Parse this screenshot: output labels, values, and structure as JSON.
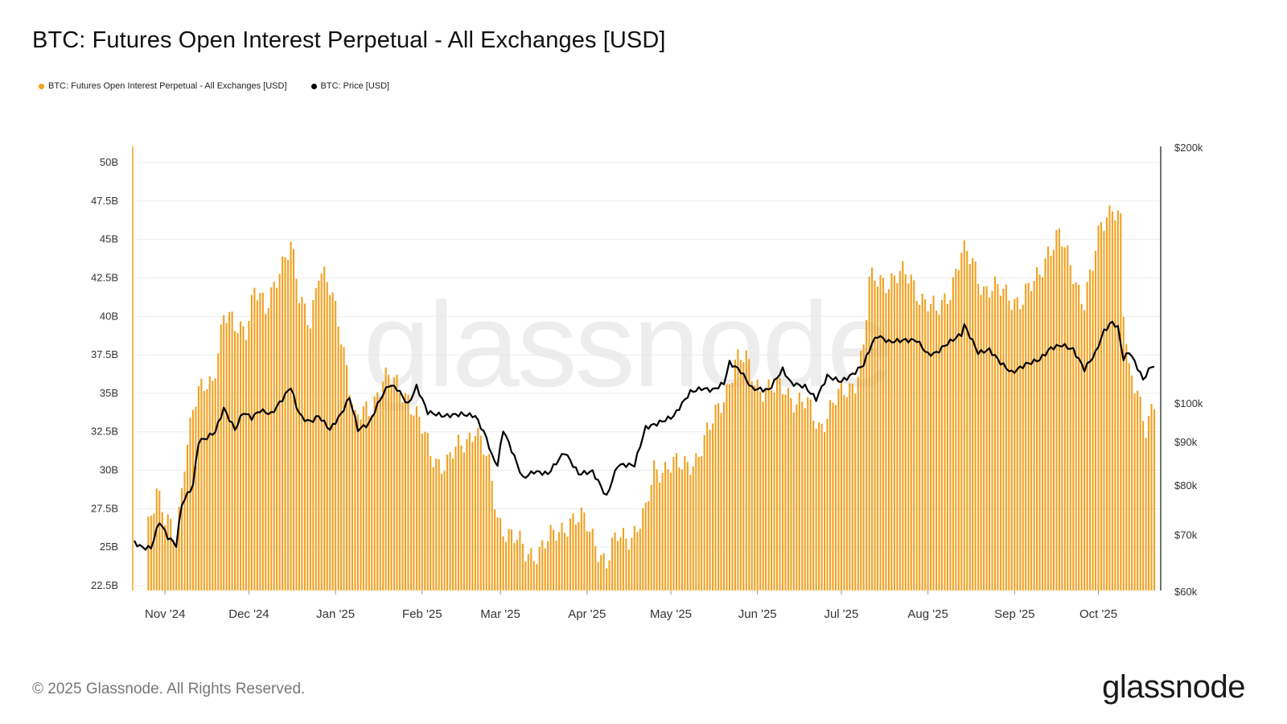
{
  "title": "BTC: Futures Open Interest Perpetual - All Exchanges [USD]",
  "footer": {
    "copyright": "© 2025 Glassnode. All Rights Reserved.",
    "brand": "glassnode"
  },
  "watermark": "glassnode",
  "colors": {
    "oi": "#f2a01e",
    "price": "#000000",
    "grid": "#ececec",
    "watermark": "#e8e8e8"
  },
  "chart_data": {
    "type": "bar",
    "legend_placement": "top-left",
    "grid": true,
    "series": [
      {
        "name": "BTC: Futures Open Interest Perpetual - All Exchanges [USD]",
        "type": "bar",
        "axis": "left",
        "unit": "B",
        "anchors": [
          [
            "2024-10-21",
            26.5
          ],
          [
            "2024-10-25",
            26.0
          ],
          [
            "2024-10-29",
            29.0
          ],
          [
            "2024-11-01",
            26.5
          ],
          [
            "2024-11-05",
            25.5
          ],
          [
            "2024-11-08",
            31.0
          ],
          [
            "2024-11-11",
            34.0
          ],
          [
            "2024-11-14",
            35.0
          ],
          [
            "2024-11-18",
            36.0
          ],
          [
            "2024-11-22",
            40.2
          ],
          [
            "2024-11-26",
            39.0
          ],
          [
            "2024-11-30",
            39.5
          ],
          [
            "2024-12-03",
            42.0
          ],
          [
            "2024-12-07",
            40.0
          ],
          [
            "2024-12-12",
            43.5
          ],
          [
            "2024-12-16",
            44.5
          ],
          [
            "2024-12-19",
            41.0
          ],
          [
            "2024-12-23",
            40.0
          ],
          [
            "2024-12-26",
            43.0
          ],
          [
            "2024-12-30",
            41.5
          ],
          [
            "2025-01-02",
            40.0
          ],
          [
            "2025-01-05",
            37.0
          ],
          [
            "2025-01-08",
            33.0
          ],
          [
            "2025-01-13",
            34.0
          ],
          [
            "2025-01-18",
            36.0
          ],
          [
            "2025-01-22",
            35.5
          ],
          [
            "2025-01-27",
            35.0
          ],
          [
            "2025-01-31",
            33.0
          ],
          [
            "2025-02-04",
            31.0
          ],
          [
            "2025-02-10",
            30.5
          ],
          [
            "2025-02-15",
            31.5
          ],
          [
            "2025-02-20",
            33.0
          ],
          [
            "2025-02-25",
            30.0
          ],
          [
            "2025-02-28",
            27.0
          ],
          [
            "2025-03-04",
            26.0
          ],
          [
            "2025-03-10",
            24.5
          ],
          [
            "2025-03-15",
            25.0
          ],
          [
            "2025-03-20",
            25.5
          ],
          [
            "2025-03-26",
            27.0
          ],
          [
            "2025-03-31",
            26.5
          ],
          [
            "2025-04-04",
            25.5
          ],
          [
            "2025-04-08",
            24.0
          ],
          [
            "2025-04-12",
            25.5
          ],
          [
            "2025-04-17",
            26.0
          ],
          [
            "2025-04-22",
            27.0
          ],
          [
            "2025-04-25",
            30.0
          ],
          [
            "2025-04-30",
            30.5
          ],
          [
            "2025-05-05",
            30.0
          ],
          [
            "2025-05-10",
            31.0
          ],
          [
            "2025-05-15",
            32.5
          ],
          [
            "2025-05-20",
            35.0
          ],
          [
            "2025-05-24",
            37.0
          ],
          [
            "2025-05-28",
            37.0
          ],
          [
            "2025-06-02",
            35.5
          ],
          [
            "2025-06-06",
            35.0
          ],
          [
            "2025-06-11",
            35.5
          ],
          [
            "2025-06-15",
            34.5
          ],
          [
            "2025-06-19",
            34.0
          ],
          [
            "2025-06-23",
            33.0
          ],
          [
            "2025-06-27",
            34.0
          ],
          [
            "2025-07-02",
            35.0
          ],
          [
            "2025-07-06",
            36.0
          ],
          [
            "2025-07-09",
            38.0
          ],
          [
            "2025-07-11",
            42.0
          ],
          [
            "2025-07-15",
            42.5
          ],
          [
            "2025-07-21",
            42.5
          ],
          [
            "2025-07-26",
            42.5
          ],
          [
            "2025-07-31",
            41.0
          ],
          [
            "2025-08-04",
            40.0
          ],
          [
            "2025-08-09",
            42.0
          ],
          [
            "2025-08-13",
            44.0
          ],
          [
            "2025-08-17",
            43.5
          ],
          [
            "2025-08-21",
            42.0
          ],
          [
            "2025-08-26",
            41.5
          ],
          [
            "2025-08-30",
            41.5
          ],
          [
            "2025-09-04",
            41.0
          ],
          [
            "2025-09-08",
            42.0
          ],
          [
            "2025-09-13",
            44.5
          ],
          [
            "2025-09-17",
            45.0
          ],
          [
            "2025-09-22",
            43.0
          ],
          [
            "2025-09-26",
            41.0
          ],
          [
            "2025-09-29",
            43.0
          ],
          [
            "2025-10-02",
            46.0
          ],
          [
            "2025-10-06",
            47.5
          ],
          [
            "2025-10-09",
            46.0
          ],
          [
            "2025-10-10",
            40.0
          ],
          [
            "2025-10-12",
            36.0
          ],
          [
            "2025-10-15",
            35.5
          ],
          [
            "2025-10-18",
            33.0
          ],
          [
            "2025-10-21",
            34.0
          ]
        ]
      },
      {
        "name": "BTC: Price [USD]",
        "type": "line",
        "axis": "right",
        "anchors": [
          [
            "2024-10-21",
            68500
          ],
          [
            "2024-10-24",
            67500
          ],
          [
            "2024-10-27",
            67500
          ],
          [
            "2024-10-30",
            72500
          ],
          [
            "2024-11-02",
            69500
          ],
          [
            "2024-11-05",
            68000
          ],
          [
            "2024-11-07",
            76000
          ],
          [
            "2024-11-11",
            80000
          ],
          [
            "2024-11-13",
            90000
          ],
          [
            "2024-11-16",
            91000
          ],
          [
            "2024-11-19",
            92500
          ],
          [
            "2024-11-22",
            98500
          ],
          [
            "2024-11-26",
            93000
          ],
          [
            "2024-11-29",
            97500
          ],
          [
            "2024-12-02",
            96000
          ],
          [
            "2024-12-05",
            98000
          ],
          [
            "2024-12-09",
            97000
          ],
          [
            "2024-12-13",
            101000
          ],
          [
            "2024-12-16",
            104500
          ],
          [
            "2024-12-18",
            99000
          ],
          [
            "2024-12-20",
            96000
          ],
          [
            "2024-12-23",
            95000
          ],
          [
            "2024-12-26",
            96500
          ],
          [
            "2024-12-30",
            93000
          ],
          [
            "2025-01-03",
            97000
          ],
          [
            "2025-01-06",
            101500
          ],
          [
            "2025-01-09",
            93000
          ],
          [
            "2025-01-13",
            94500
          ],
          [
            "2025-01-17",
            101000
          ],
          [
            "2025-01-20",
            105000
          ],
          [
            "2025-01-23",
            104000
          ],
          [
            "2025-01-27",
            99500
          ],
          [
            "2025-01-30",
            104500
          ],
          [
            "2025-02-03",
            97500
          ],
          [
            "2025-02-09",
            96500
          ],
          [
            "2025-02-15",
            97000
          ],
          [
            "2025-02-20",
            96500
          ],
          [
            "2025-02-24",
            91000
          ],
          [
            "2025-02-26",
            86500
          ],
          [
            "2025-02-28",
            84500
          ],
          [
            "2025-03-02",
            93000
          ],
          [
            "2025-03-05",
            88000
          ],
          [
            "2025-03-09",
            81500
          ],
          [
            "2025-03-13",
            83000
          ],
          [
            "2025-03-18",
            82500
          ],
          [
            "2025-03-24",
            87500
          ],
          [
            "2025-03-29",
            82500
          ],
          [
            "2025-04-03",
            83000
          ],
          [
            "2025-04-08",
            77500
          ],
          [
            "2025-04-12",
            84500
          ],
          [
            "2025-04-18",
            84500
          ],
          [
            "2025-04-22",
            93500
          ],
          [
            "2025-04-26",
            94500
          ],
          [
            "2025-05-02",
            96500
          ],
          [
            "2025-05-08",
            103000
          ],
          [
            "2025-05-12",
            104000
          ],
          [
            "2025-05-16",
            103500
          ],
          [
            "2025-05-20",
            105500
          ],
          [
            "2025-05-22",
            111500
          ],
          [
            "2025-05-26",
            109000
          ],
          [
            "2025-05-30",
            104000
          ],
          [
            "2025-06-05",
            103500
          ],
          [
            "2025-06-10",
            109500
          ],
          [
            "2025-06-13",
            105500
          ],
          [
            "2025-06-18",
            104500
          ],
          [
            "2025-06-22",
            101000
          ],
          [
            "2025-06-26",
            107500
          ],
          [
            "2025-07-01",
            106000
          ],
          [
            "2025-07-05",
            108000
          ],
          [
            "2025-07-09",
            111000
          ],
          [
            "2025-07-12",
            117500
          ],
          [
            "2025-07-14",
            120000
          ],
          [
            "2025-07-18",
            118000
          ],
          [
            "2025-07-23",
            118500
          ],
          [
            "2025-07-28",
            118500
          ],
          [
            "2025-08-01",
            114000
          ],
          [
            "2025-08-04",
            114500
          ],
          [
            "2025-08-08",
            117500
          ],
          [
            "2025-08-13",
            120500
          ],
          [
            "2025-08-14",
            123500
          ],
          [
            "2025-08-19",
            114500
          ],
          [
            "2025-08-23",
            115500
          ],
          [
            "2025-08-27",
            111500
          ],
          [
            "2025-08-31",
            108500
          ],
          [
            "2025-09-05",
            111000
          ],
          [
            "2025-09-10",
            112500
          ],
          [
            "2025-09-14",
            116000
          ],
          [
            "2025-09-18",
            117000
          ],
          [
            "2025-09-22",
            115500
          ],
          [
            "2025-09-26",
            109500
          ],
          [
            "2025-09-30",
            114500
          ],
          [
            "2025-10-03",
            121500
          ],
          [
            "2025-10-06",
            124500
          ],
          [
            "2025-10-08",
            122500
          ],
          [
            "2025-10-10",
            112500
          ],
          [
            "2025-10-12",
            115000
          ],
          [
            "2025-10-15",
            110000
          ],
          [
            "2025-10-17",
            106500
          ],
          [
            "2025-10-20",
            110500
          ]
        ]
      }
    ],
    "x_range": [
      "2024-10-21",
      "2025-10-21"
    ],
    "x_ticks": [
      {
        "label": "Nov '24",
        "date": "2024-11-01"
      },
      {
        "label": "Dec '24",
        "date": "2024-12-01"
      },
      {
        "label": "Jan '25",
        "date": "2025-01-01"
      },
      {
        "label": "Feb '25",
        "date": "2025-02-01"
      },
      {
        "label": "Mar '25",
        "date": "2025-03-01"
      },
      {
        "label": "Apr '25",
        "date": "2025-04-01"
      },
      {
        "label": "May '25",
        "date": "2025-05-01"
      },
      {
        "label": "Jun '25",
        "date": "2025-06-01"
      },
      {
        "label": "Jul '25",
        "date": "2025-07-01"
      },
      {
        "label": "Aug '25",
        "date": "2025-08-01"
      },
      {
        "label": "Sep '25",
        "date": "2025-09-01"
      },
      {
        "label": "Oct '25",
        "date": "2025-10-01"
      }
    ],
    "y_left": {
      "range": [
        22.5,
        50
      ],
      "ticks": [
        {
          "label": "22.5B",
          "value": 22.5
        },
        {
          "label": "25B",
          "value": 25
        },
        {
          "label": "27.5B",
          "value": 27.5
        },
        {
          "label": "30B",
          "value": 30
        },
        {
          "label": "32.5B",
          "value": 32.5
        },
        {
          "label": "35B",
          "value": 35
        },
        {
          "label": "37.5B",
          "value": 37.5
        },
        {
          "label": "40B",
          "value": 40
        },
        {
          "label": "42.5B",
          "value": 42.5
        },
        {
          "label": "45B",
          "value": 45
        },
        {
          "label": "47.5B",
          "value": 47.5
        },
        {
          "label": "50B",
          "value": 50
        }
      ]
    },
    "y_right": {
      "scale": "log",
      "range": [
        60000,
        200000
      ],
      "ticks": [
        {
          "label": "$60k",
          "value": 60000
        },
        {
          "label": "$70k",
          "value": 70000
        },
        {
          "label": "$80k",
          "value": 80000
        },
        {
          "label": "$90k",
          "value": 90000
        },
        {
          "label": "$100k",
          "value": 100000
        },
        {
          "label": "$200k",
          "value": 200000
        }
      ]
    }
  }
}
